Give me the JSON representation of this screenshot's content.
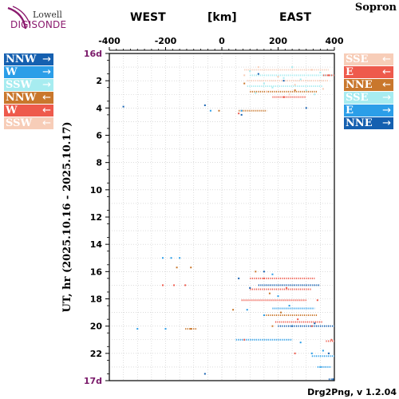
{
  "header": {
    "logo_top": "Lowell",
    "logo_main": "DIGISONDE",
    "west": "WEST",
    "unit": "[km]",
    "east": "EAST",
    "station": "Sopron",
    "footer": "Drg2Png, v 1.2.04"
  },
  "legend_left": [
    {
      "label": "NNW",
      "arrow": "→",
      "color": "#1560b0"
    },
    {
      "label": "W",
      "arrow": "→",
      "color": "#2b9ee8"
    },
    {
      "label": "SSW",
      "arrow": "→",
      "color": "#a7ecf0"
    },
    {
      "label": "NNW",
      "arrow": "←",
      "color": "#c9772c"
    },
    {
      "label": "W",
      "arrow": "←",
      "color": "#ee5a4c"
    },
    {
      "label": "SSW",
      "arrow": "←",
      "color": "#f7cdb8"
    }
  ],
  "legend_right": [
    {
      "label": "SSE",
      "arrow": "←",
      "color": "#f7cdb8"
    },
    {
      "label": "E",
      "arrow": "←",
      "color": "#ee5a4c"
    },
    {
      "label": "NNE",
      "arrow": "←",
      "color": "#c9772c"
    },
    {
      "label": "SSE",
      "arrow": "→",
      "color": "#a7ecf0"
    },
    {
      "label": "E",
      "arrow": "→",
      "color": "#2b9ee8"
    },
    {
      "label": "NNE",
      "arrow": "→",
      "color": "#1560b0"
    }
  ],
  "chart_data": {
    "type": "scatter",
    "ylabel": "UT, hr (2025.10.16 - 2025.10.17)",
    "xlim": [
      -400,
      400
    ],
    "ylim": [
      0,
      24
    ],
    "x_ticks": [
      "-400",
      "-200",
      "0",
      "200",
      "400"
    ],
    "y_ticks": [
      {
        "v": 0,
        "label": "16d"
      },
      {
        "v": 2,
        "label": "2"
      },
      {
        "v": 4,
        "label": "4"
      },
      {
        "v": 6,
        "label": "6"
      },
      {
        "v": 8,
        "label": "8"
      },
      {
        "v": 10,
        "label": "10"
      },
      {
        "v": 12,
        "label": "12"
      },
      {
        "v": 14,
        "label": "14"
      },
      {
        "v": 16,
        "label": "16"
      },
      {
        "v": 18,
        "label": "18"
      },
      {
        "v": 20,
        "label": "20"
      },
      {
        "v": 22,
        "label": "22"
      },
      {
        "v": 24,
        "label": "17d"
      }
    ],
    "grid": "dotted",
    "series": [
      {
        "color": "#1560b0",
        "points": [
          [
            -350,
            3.9
          ],
          [
            -60,
            3.8
          ],
          [
            70,
            4.5
          ],
          [
            130,
            1.5
          ],
          [
            220,
            2.0
          ],
          [
            300,
            4.0
          ],
          [
            380,
            22.0
          ],
          [
            395,
            23.9
          ],
          [
            150,
            16.0
          ],
          [
            250,
            20.0
          ],
          [
            -60,
            23.5
          ],
          [
            100,
            17.2
          ],
          [
            330,
            19.8
          ],
          [
            60,
            16.5
          ]
        ]
      },
      {
        "color": "#2b9ee8",
        "points": [
          [
            -210,
            15.0
          ],
          [
            -180,
            15.0
          ],
          [
            -150,
            15.0
          ],
          [
            -200,
            20.2
          ],
          [
            -300,
            20.2
          ],
          [
            -40,
            4.2
          ],
          [
            70,
            4.2
          ],
          [
            320,
            22.0
          ],
          [
            350,
            23.0
          ],
          [
            280,
            21.2
          ],
          [
            200,
            17.8
          ],
          [
            150,
            19.2
          ],
          [
            360,
            21.8
          ],
          [
            90,
            18.8
          ],
          [
            180,
            16.2
          ],
          [
            240,
            18.5
          ]
        ]
      },
      {
        "color": "#a7ecf0",
        "points": [
          [
            100,
            1.3
          ],
          [
            150,
            2.2
          ],
          [
            250,
            1.0
          ],
          [
            300,
            2.7
          ],
          [
            220,
            1.8
          ],
          [
            120,
            2.9
          ],
          [
            350,
            1.4
          ],
          [
            180,
            2.5
          ],
          [
            280,
            1.9
          ],
          [
            330,
            3.0
          ]
        ]
      },
      {
        "color": "#c9772c",
        "points": [
          [
            -160,
            15.7
          ],
          [
            -110,
            15.7
          ],
          [
            -10,
            4.2
          ],
          [
            40,
            18.8
          ],
          [
            120,
            16.0
          ],
          [
            180,
            20.0
          ],
          [
            -110,
            20.2
          ],
          [
            260,
            2.7
          ],
          [
            80,
            2.2
          ],
          [
            170,
            17.6
          ],
          [
            210,
            19.0
          ]
        ]
      },
      {
        "color": "#ee5a4c",
        "points": [
          [
            -210,
            17.0
          ],
          [
            -170,
            17.0
          ],
          [
            -130,
            17.0
          ],
          [
            60,
            4.4
          ],
          [
            220,
            3.2
          ],
          [
            380,
            1.6
          ],
          [
            390,
            21.0
          ],
          [
            270,
            19.5
          ],
          [
            320,
            20.0
          ],
          [
            260,
            22.0
          ],
          [
            150,
            16.5
          ],
          [
            80,
            21.0
          ],
          [
            230,
            17.2
          ],
          [
            340,
            18.1
          ]
        ]
      },
      {
        "color": "#f7cdb8",
        "points": [
          [
            130,
            1.0
          ],
          [
            200,
            1.7
          ],
          [
            260,
            2.3
          ],
          [
            320,
            1.2
          ],
          [
            160,
            2.8
          ],
          [
            240,
            3.0
          ],
          [
            80,
            1.6
          ],
          [
            360,
            2.6
          ]
        ]
      }
    ],
    "segments": [
      {
        "color": "#ee5a4c",
        "y": 16.5,
        "x0": 100,
        "x1": 330
      },
      {
        "color": "#ee5a4c",
        "y": 17.3,
        "x0": 100,
        "x1": 320
      },
      {
        "color": "#1560b0",
        "y": 17.0,
        "x0": 130,
        "x1": 350
      },
      {
        "color": "#ee5a4c",
        "y": 18.1,
        "x0": 70,
        "x1": 300
      },
      {
        "color": "#2b9ee8",
        "y": 18.7,
        "x0": 180,
        "x1": 330
      },
      {
        "color": "#c9772c",
        "y": 19.2,
        "x0": 150,
        "x1": 340
      },
      {
        "color": "#ee5a4c",
        "y": 19.7,
        "x0": 190,
        "x1": 360
      },
      {
        "color": "#1560b0",
        "y": 20.0,
        "x0": 200,
        "x1": 400
      },
      {
        "color": "#2b9ee8",
        "y": 21.0,
        "x0": 50,
        "x1": 250
      },
      {
        "color": "#ee5a4c",
        "y": 21.1,
        "x0": 370,
        "x1": 400
      },
      {
        "color": "#2b9ee8",
        "y": 22.2,
        "x0": 320,
        "x1": 400
      },
      {
        "color": "#2b9ee8",
        "y": 23.0,
        "x0": 340,
        "x1": 390
      },
      {
        "color": "#1560b0",
        "y": 23.9,
        "x0": 380,
        "x1": 400
      },
      {
        "color": "#f7cdb8",
        "y": 1.2,
        "x0": 80,
        "x1": 380
      },
      {
        "color": "#a7ecf0",
        "y": 1.6,
        "x0": 100,
        "x1": 400
      },
      {
        "color": "#f7cdb8",
        "y": 2.0,
        "x0": 90,
        "x1": 380
      },
      {
        "color": "#a7ecf0",
        "y": 2.4,
        "x0": 90,
        "x1": 360
      },
      {
        "color": "#c9772c",
        "y": 2.8,
        "x0": 100,
        "x1": 340
      },
      {
        "color": "#ee5a4c",
        "y": 3.2,
        "x0": 180,
        "x1": 300
      },
      {
        "color": "#c9772c",
        "y": 4.2,
        "x0": 60,
        "x1": 160
      },
      {
        "color": "#ee5a4c",
        "y": 1.6,
        "x0": 360,
        "x1": 400
      },
      {
        "color": "#c9772c",
        "y": 20.2,
        "x0": -130,
        "x1": -90
      }
    ]
  }
}
